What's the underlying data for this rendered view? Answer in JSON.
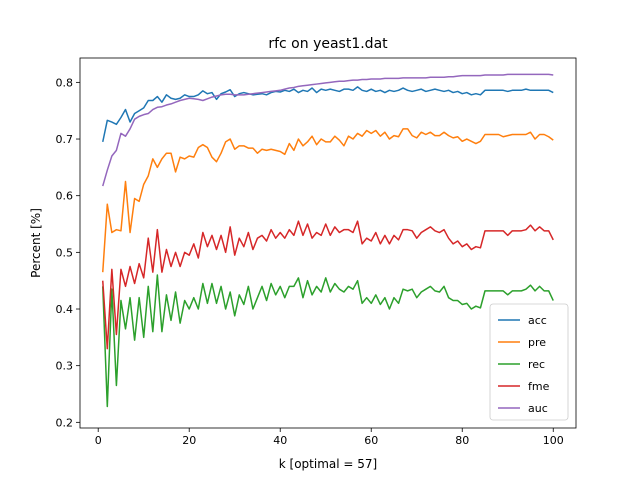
{
  "chart_data": {
    "type": "line",
    "title": "rfc on yeast1.dat",
    "xlabel": "k [optimal = 57]",
    "ylabel": "Percent [%]",
    "xlim": [
      -4,
      105
    ],
    "ylim": [
      0.19,
      0.843
    ],
    "xticks": [
      0,
      20,
      40,
      60,
      80,
      100
    ],
    "yticks": [
      0.2,
      0.3,
      0.4,
      0.5,
      0.6,
      0.7,
      0.8
    ],
    "grid": false,
    "legend_position": "lower-right",
    "x": [
      1,
      2,
      3,
      4,
      5,
      6,
      7,
      8,
      9,
      10,
      11,
      12,
      13,
      14,
      15,
      16,
      17,
      18,
      19,
      20,
      21,
      22,
      23,
      24,
      25,
      26,
      27,
      28,
      29,
      30,
      31,
      32,
      33,
      34,
      35,
      36,
      37,
      38,
      39,
      40,
      41,
      42,
      43,
      44,
      45,
      46,
      47,
      48,
      49,
      50,
      51,
      52,
      53,
      54,
      55,
      56,
      57,
      58,
      59,
      60,
      61,
      62,
      63,
      64,
      65,
      66,
      67,
      68,
      69,
      70,
      71,
      72,
      73,
      74,
      75,
      76,
      77,
      78,
      79,
      80,
      81,
      82,
      83,
      84,
      85,
      86,
      87,
      88,
      89,
      90,
      91,
      92,
      93,
      94,
      95,
      96,
      97,
      98,
      99,
      100
    ],
    "series": [
      {
        "name": "acc",
        "color": "#1f77b4",
        "values": [
          0.695,
          0.733,
          0.73,
          0.726,
          0.738,
          0.752,
          0.73,
          0.745,
          0.75,
          0.755,
          0.768,
          0.768,
          0.775,
          0.765,
          0.778,
          0.772,
          0.77,
          0.772,
          0.778,
          0.775,
          0.775,
          0.778,
          0.785,
          0.78,
          0.782,
          0.77,
          0.78,
          0.783,
          0.787,
          0.775,
          0.78,
          0.782,
          0.78,
          0.778,
          0.779,
          0.78,
          0.778,
          0.782,
          0.784,
          0.783,
          0.786,
          0.784,
          0.788,
          0.782,
          0.786,
          0.784,
          0.79,
          0.782,
          0.788,
          0.786,
          0.788,
          0.786,
          0.784,
          0.788,
          0.788,
          0.786,
          0.792,
          0.786,
          0.784,
          0.788,
          0.784,
          0.786,
          0.782,
          0.786,
          0.784,
          0.786,
          0.79,
          0.786,
          0.784,
          0.786,
          0.788,
          0.784,
          0.786,
          0.788,
          0.786,
          0.784,
          0.786,
          0.782,
          0.784,
          0.78,
          0.782,
          0.778,
          0.78,
          0.778,
          0.786,
          0.786,
          0.786,
          0.786,
          0.786,
          0.784,
          0.786,
          0.786,
          0.786,
          0.788,
          0.786,
          0.786,
          0.786,
          0.786,
          0.786,
          0.782
        ]
      },
      {
        "name": "pre",
        "color": "#ff7f0e",
        "values": [
          0.465,
          0.585,
          0.535,
          0.54,
          0.538,
          0.625,
          0.535,
          0.595,
          0.59,
          0.62,
          0.635,
          0.665,
          0.65,
          0.665,
          0.675,
          0.675,
          0.642,
          0.668,
          0.665,
          0.67,
          0.668,
          0.685,
          0.69,
          0.685,
          0.668,
          0.66,
          0.675,
          0.695,
          0.7,
          0.682,
          0.688,
          0.688,
          0.684,
          0.684,
          0.675,
          0.682,
          0.68,
          0.682,
          0.68,
          0.678,
          0.673,
          0.692,
          0.68,
          0.7,
          0.688,
          0.695,
          0.705,
          0.69,
          0.7,
          0.695,
          0.695,
          0.705,
          0.698,
          0.688,
          0.705,
          0.7,
          0.71,
          0.705,
          0.715,
          0.71,
          0.715,
          0.705,
          0.712,
          0.7,
          0.706,
          0.704,
          0.718,
          0.718,
          0.706,
          0.702,
          0.712,
          0.708,
          0.712,
          0.706,
          0.706,
          0.712,
          0.706,
          0.702,
          0.704,
          0.696,
          0.7,
          0.696,
          0.692,
          0.696,
          0.708,
          0.708,
          0.708,
          0.708,
          0.704,
          0.706,
          0.708,
          0.708,
          0.708,
          0.708,
          0.712,
          0.7,
          0.708,
          0.708,
          0.704,
          0.698
        ]
      },
      {
        "name": "rec",
        "color": "#2ca02c",
        "values": [
          0.44,
          0.228,
          0.435,
          0.265,
          0.415,
          0.365,
          0.42,
          0.345,
          0.42,
          0.35,
          0.44,
          0.36,
          0.46,
          0.36,
          0.425,
          0.38,
          0.43,
          0.375,
          0.415,
          0.4,
          0.42,
          0.4,
          0.445,
          0.41,
          0.445,
          0.41,
          0.44,
          0.4,
          0.43,
          0.388,
          0.425,
          0.408,
          0.44,
          0.4,
          0.42,
          0.44,
          0.415,
          0.445,
          0.425,
          0.44,
          0.42,
          0.44,
          0.44,
          0.455,
          0.42,
          0.45,
          0.425,
          0.44,
          0.43,
          0.455,
          0.43,
          0.445,
          0.435,
          0.43,
          0.44,
          0.435,
          0.45,
          0.41,
          0.42,
          0.41,
          0.425,
          0.408,
          0.42,
          0.4,
          0.42,
          0.41,
          0.435,
          0.432,
          0.435,
          0.42,
          0.43,
          0.435,
          0.44,
          0.432,
          0.43,
          0.44,
          0.42,
          0.415,
          0.415,
          0.408,
          0.41,
          0.4,
          0.405,
          0.402,
          0.432,
          0.432,
          0.432,
          0.432,
          0.432,
          0.425,
          0.432,
          0.432,
          0.432,
          0.435,
          0.442,
          0.432,
          0.44,
          0.432,
          0.432,
          0.415
        ]
      },
      {
        "name": "fme",
        "color": "#d62728",
        "values": [
          0.45,
          0.33,
          0.47,
          0.355,
          0.47,
          0.44,
          0.475,
          0.445,
          0.48,
          0.455,
          0.525,
          0.465,
          0.54,
          0.465,
          0.505,
          0.475,
          0.5,
          0.475,
          0.5,
          0.495,
          0.515,
          0.49,
          0.535,
          0.51,
          0.53,
          0.505,
          0.53,
          0.5,
          0.545,
          0.495,
          0.525,
          0.51,
          0.535,
          0.505,
          0.525,
          0.53,
          0.52,
          0.54,
          0.525,
          0.535,
          0.525,
          0.54,
          0.53,
          0.555,
          0.53,
          0.55,
          0.525,
          0.535,
          0.53,
          0.55,
          0.53,
          0.545,
          0.535,
          0.54,
          0.54,
          0.535,
          0.555,
          0.515,
          0.525,
          0.52,
          0.535,
          0.515,
          0.53,
          0.515,
          0.53,
          0.522,
          0.54,
          0.54,
          0.538,
          0.525,
          0.535,
          0.54,
          0.545,
          0.538,
          0.535,
          0.54,
          0.525,
          0.515,
          0.52,
          0.51,
          0.515,
          0.505,
          0.51,
          0.508,
          0.538,
          0.538,
          0.538,
          0.538,
          0.538,
          0.53,
          0.538,
          0.538,
          0.538,
          0.54,
          0.548,
          0.538,
          0.545,
          0.538,
          0.538,
          0.522
        ]
      },
      {
        "name": "auc",
        "color": "#9467bd",
        "values": [
          0.617,
          0.645,
          0.67,
          0.68,
          0.71,
          0.705,
          0.718,
          0.735,
          0.74,
          0.743,
          0.745,
          0.752,
          0.756,
          0.757,
          0.76,
          0.762,
          0.765,
          0.768,
          0.77,
          0.772,
          0.771,
          0.77,
          0.768,
          0.771,
          0.774,
          0.776,
          0.778,
          0.779,
          0.779,
          0.778,
          0.778,
          0.778,
          0.779,
          0.78,
          0.781,
          0.782,
          0.783,
          0.784,
          0.785,
          0.786,
          0.788,
          0.79,
          0.791,
          0.793,
          0.794,
          0.795,
          0.796,
          0.797,
          0.798,
          0.799,
          0.8,
          0.801,
          0.802,
          0.802,
          0.803,
          0.804,
          0.804,
          0.805,
          0.805,
          0.806,
          0.806,
          0.806,
          0.807,
          0.807,
          0.807,
          0.807,
          0.808,
          0.808,
          0.808,
          0.808,
          0.808,
          0.808,
          0.809,
          0.809,
          0.809,
          0.809,
          0.81,
          0.81,
          0.811,
          0.812,
          0.812,
          0.812,
          0.812,
          0.812,
          0.813,
          0.813,
          0.813,
          0.813,
          0.813,
          0.814,
          0.814,
          0.814,
          0.814,
          0.814,
          0.814,
          0.814,
          0.814,
          0.814,
          0.814,
          0.813
        ]
      }
    ]
  }
}
